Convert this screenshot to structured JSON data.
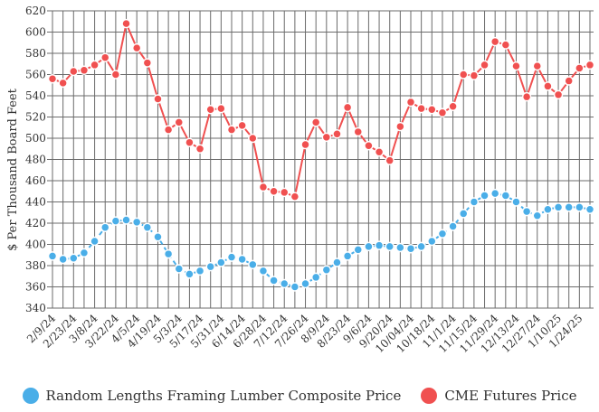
{
  "chart_data": {
    "type": "line",
    "ylabel": "$ Per Thousand Board Feet",
    "ylim": [
      340,
      620
    ],
    "yticks": [
      340,
      360,
      380,
      400,
      420,
      440,
      460,
      480,
      500,
      520,
      540,
      560,
      580,
      600,
      620
    ],
    "xtick_labels": [
      "2/9/24",
      "2/23/24",
      "3/8/24",
      "3/22/24",
      "4/5/24",
      "4/19/24",
      "5/3/24",
      "5/17/24",
      "5/31/24",
      "6/14/24",
      "6/28/24",
      "7/12/24",
      "7/26/24",
      "8/9/24",
      "8/23/24",
      "9/6/24",
      "9/20/24",
      "10/04/24",
      "10/18/24",
      "11/1/24",
      "11/15/24",
      "11/29/24",
      "12/13/24",
      "12/27/24",
      "1/10/25",
      "1/24/25"
    ],
    "grid": true,
    "legend_position": "bottom",
    "series": [
      {
        "name": "Random Lengths Framing Lumber Composite Price",
        "color": "#4aaee8",
        "line_style": "dashed",
        "values": [
          389,
          386,
          387,
          392,
          403,
          416,
          422,
          423,
          421,
          416,
          407,
          391,
          377,
          372,
          375,
          379,
          383,
          388,
          386,
          381,
          375,
          366,
          363,
          360,
          363,
          369,
          376,
          383,
          389,
          395,
          398,
          399,
          398,
          397,
          396,
          398,
          403,
          410,
          417,
          429,
          440,
          446,
          448,
          446,
          440,
          431,
          427,
          433,
          435,
          435,
          435,
          433
        ]
      },
      {
        "name": "CME Futures Price",
        "color": "#f05050",
        "line_style": "solid",
        "values": [
          556,
          552,
          563,
          564,
          569,
          576,
          560,
          608,
          585,
          571,
          537,
          508,
          515,
          496,
          490,
          527,
          528,
          508,
          512,
          500,
          454,
          450,
          449,
          445,
          494,
          515,
          501,
          504,
          529,
          506,
          493,
          487,
          479,
          511,
          534,
          528,
          527,
          524,
          530,
          560,
          559,
          569,
          591,
          588,
          568,
          539,
          568,
          549,
          541,
          554,
          566,
          569
        ]
      }
    ]
  }
}
